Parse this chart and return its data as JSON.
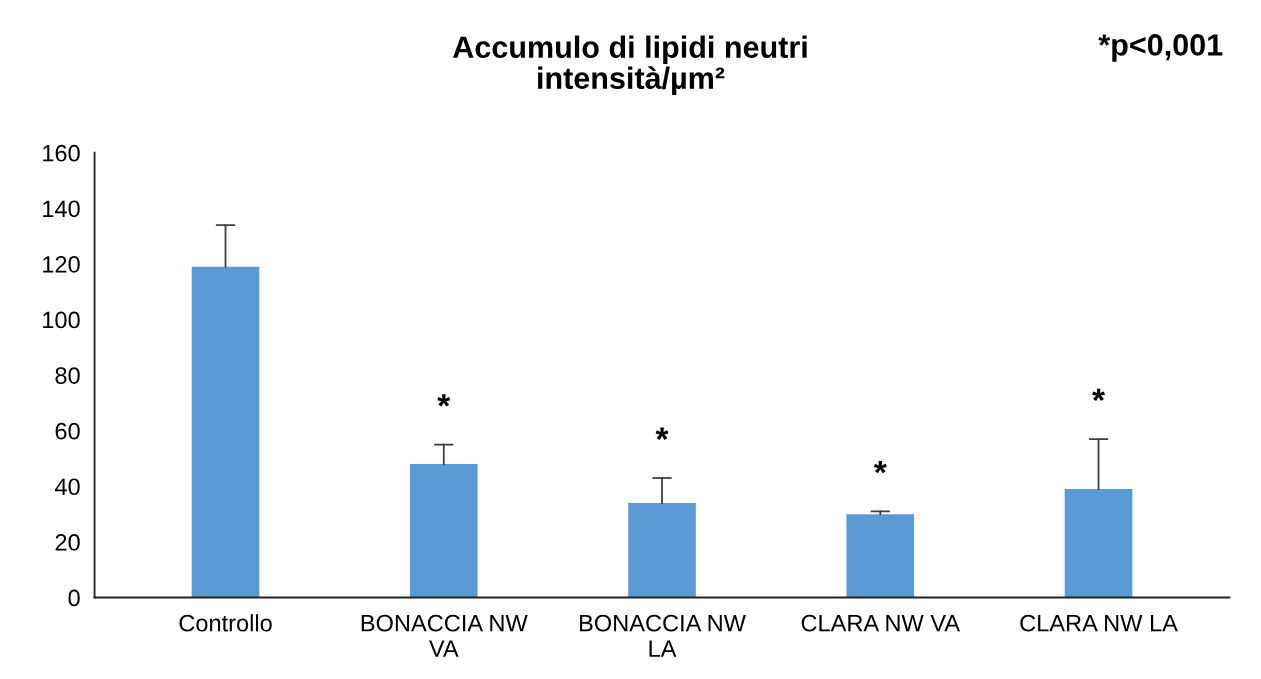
{
  "chart_data": {
    "type": "bar",
    "title": "Accumulo di lipidi neutri\nintensità/µm²",
    "categories": [
      "Controllo",
      "BONACCIA NW\nVA",
      "BONACCIA NW\nLA",
      "CLARA NW VA",
      "CLARA NW LA"
    ],
    "values": [
      119,
      48,
      34,
      30,
      39
    ],
    "errors": [
      [
        119,
        134
      ],
      [
        48,
        55
      ],
      [
        34,
        43
      ],
      [
        30,
        31
      ],
      [
        39,
        57
      ]
    ],
    "color": "#5b9bd5",
    "ylim": [
      0,
      160
    ],
    "yticks": [
      0,
      20,
      40,
      60,
      80,
      100,
      120,
      140,
      160
    ],
    "grid": false,
    "legend": false,
    "annotations": [
      "*p<0,001",
      "*",
      "*",
      "*",
      "*"
    ]
  }
}
